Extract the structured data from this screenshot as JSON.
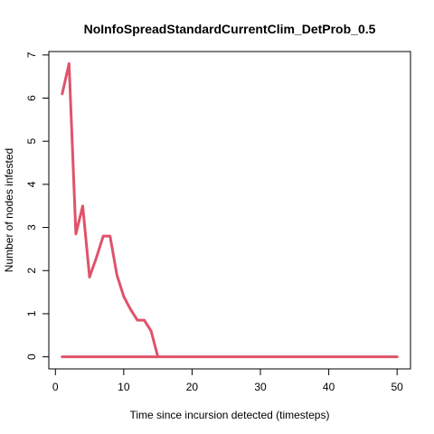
{
  "chart_data": {
    "type": "line",
    "title": "NoInfoSpreadStandardCurrentClim_DetProb_0.5",
    "xlabel": "Time since incursion detected (timesteps)",
    "ylabel": "Number of nodes infested",
    "xlim": [
      -0.96,
      51.96
    ],
    "ylim": [
      -0.28,
      7.08
    ],
    "xticks": [
      "0",
      "10",
      "20",
      "30",
      "40",
      "50"
    ],
    "yticks": [
      "0",
      "1",
      "2",
      "3",
      "4",
      "5",
      "6",
      "7"
    ],
    "grid": false,
    "legend": "none",
    "color": "#DF536B",
    "series": [
      {
        "x": [
          1,
          2,
          3,
          4,
          5,
          6,
          7,
          8,
          9,
          10,
          11,
          12,
          13,
          14,
          15
        ],
        "values": [
          6.1,
          6.8,
          2.85,
          3.5,
          1.85,
          2.3,
          2.8,
          2.8,
          1.9,
          1.4,
          1.1,
          0.85,
          0.85,
          0.6,
          0
        ]
      },
      {
        "x": [
          1,
          15,
          50
        ],
        "values": [
          0,
          0,
          0
        ]
      }
    ]
  }
}
